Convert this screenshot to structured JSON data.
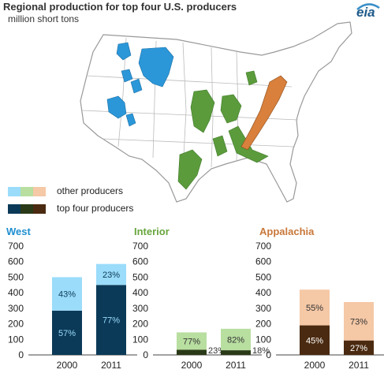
{
  "title": "Regional production for top four U.S. producers",
  "subtitle": "million short tons",
  "logo": "eia",
  "map": {
    "regions": [
      "West",
      "Interior",
      "Appalachia"
    ]
  },
  "legend": {
    "other": {
      "label": "other producers",
      "colors": [
        "#9adcfa",
        "#b8dea0",
        "#f5c8a6"
      ]
    },
    "top": {
      "label": "top four producers",
      "colors": [
        "#0b3a58",
        "#2a3a18",
        "#4a2a10"
      ]
    }
  },
  "chart_data": [
    {
      "type": "bar",
      "stacked": true,
      "title": "West",
      "title_color": "#1f8fd0",
      "categories": [
        "2000",
        "2011"
      ],
      "ylim": [
        0,
        700
      ],
      "yticks": [
        "0",
        "100",
        "200",
        "300",
        "400",
        "500",
        "600",
        "700"
      ],
      "colors": {
        "top": "#0b3a58",
        "other": "#9adcfa",
        "top_label": "#9adcfa",
        "other_label": "#0b3a58"
      },
      "series": [
        {
          "name": "top four producers",
          "values": [
            285,
            450
          ],
          "labels": [
            "57%",
            "77%"
          ]
        },
        {
          "name": "other producers",
          "values": [
            215,
            135
          ],
          "labels": [
            "43%",
            "23%"
          ]
        }
      ]
    },
    {
      "type": "bar",
      "stacked": true,
      "title": "Interior",
      "title_color": "#68a63c",
      "categories": [
        "2000",
        "2011"
      ],
      "ylim": [
        0,
        700
      ],
      "yticks": [
        "0",
        "100",
        "200",
        "300",
        "400",
        "500",
        "600",
        "700"
      ],
      "colors": {
        "top": "#2a3a18",
        "other": "#b8dea0",
        "top_label": "#333333",
        "other_label": "#333333"
      },
      "series": [
        {
          "name": "top four producers",
          "values": [
            33,
            30
          ],
          "labels": [
            "23%",
            "18%"
          ]
        },
        {
          "name": "other producers",
          "values": [
            112,
            138
          ],
          "labels": [
            "77%",
            "82%"
          ]
        }
      ]
    },
    {
      "type": "bar",
      "stacked": true,
      "title": "Appalachia",
      "title_color": "#c8783a",
      "categories": [
        "2000",
        "2011"
      ],
      "ylim": [
        0,
        700
      ],
      "yticks": [
        "0",
        "100",
        "200",
        "300",
        "400",
        "500",
        "600",
        "700"
      ],
      "colors": {
        "top": "#4a2a10",
        "other": "#f5c8a6",
        "top_label": "#ffffff",
        "other_label": "#333333"
      },
      "series": [
        {
          "name": "top four producers",
          "values": [
            190,
            93
          ],
          "labels": [
            "45%",
            "27%"
          ]
        },
        {
          "name": "other producers",
          "values": [
            230,
            247
          ],
          "labels": [
            "55%",
            "73%"
          ]
        }
      ]
    }
  ]
}
